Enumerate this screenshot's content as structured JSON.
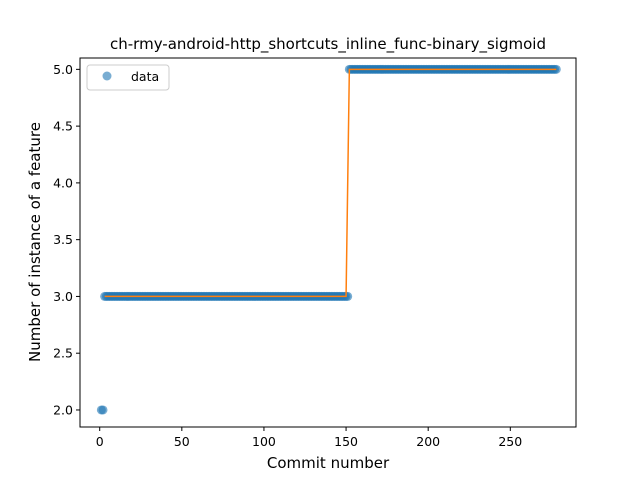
{
  "chart_data": {
    "type": "scatter",
    "title": "ch-rmy-android-http_shortcuts_inline_func-binary_sigmoid",
    "xlabel": "Commit number",
    "ylabel": "Number of instance of a feature",
    "xlim": [
      -12,
      290
    ],
    "ylim": [
      1.85,
      5.1
    ],
    "x_ticks": [
      0,
      50,
      100,
      150,
      200,
      250
    ],
    "y_ticks": [
      2.0,
      2.5,
      3.0,
      3.5,
      4.0,
      4.5,
      5.0
    ],
    "x_tick_labels": [
      "0",
      "50",
      "100",
      "150",
      "200",
      "250"
    ],
    "y_tick_labels": [
      "2.0",
      "2.5",
      "3.0",
      "3.5",
      "4.0",
      "4.5",
      "5.0"
    ],
    "legend": {
      "position": "top-left",
      "entries": [
        "data"
      ]
    },
    "grid": false,
    "colors": {
      "points": "#1f77b4",
      "fit": "#ff7f0e"
    },
    "series": [
      {
        "name": "data",
        "kind": "scatter",
        "segments": [
          {
            "x_start": 1,
            "x_end": 2,
            "y": 2.0
          },
          {
            "x_start": 3,
            "x_end": 151,
            "y": 3.0
          },
          {
            "x_start": 152,
            "x_end": 278,
            "y": 5.0
          }
        ]
      },
      {
        "kind": "line",
        "x": [
          3,
          150,
          152,
          278
        ],
        "y": [
          3.0,
          3.0,
          5.0,
          5.0
        ]
      }
    ]
  }
}
